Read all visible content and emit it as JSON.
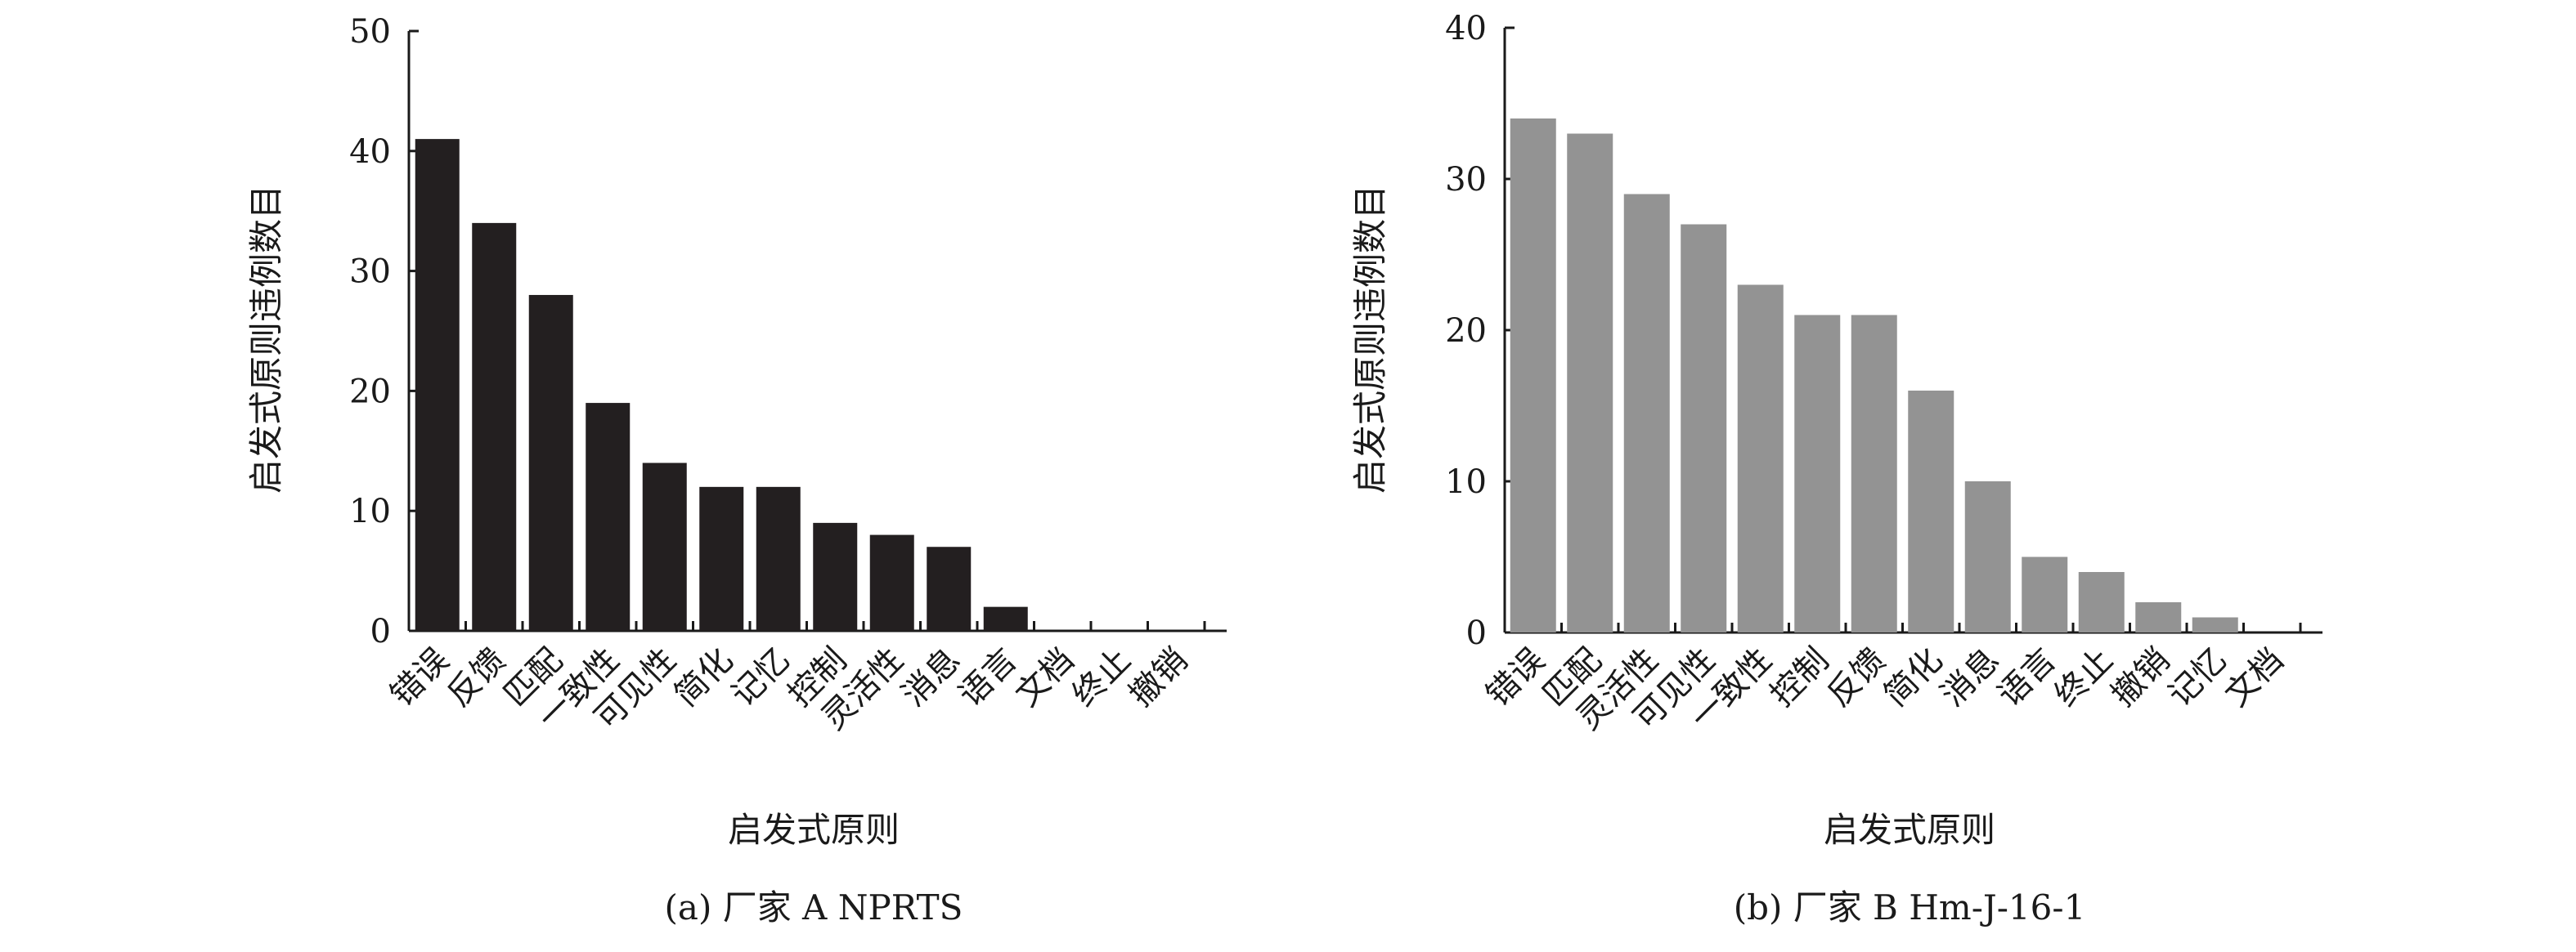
{
  "chart_data": [
    {
      "type": "bar",
      "caption": "(a) 厂家 A NPRTS",
      "xlabel": "启发式原则",
      "ylabel": "启发式原则违例数目",
      "ylim": [
        0,
        50
      ],
      "yticks": [
        0,
        10,
        20,
        30,
        40,
        50
      ],
      "color": "#231f20",
      "categories": [
        "错误",
        "反馈",
        "匹配",
        "一致性",
        "可见性",
        "简化",
        "记忆",
        "控制",
        "灵活性",
        "消息",
        "语言",
        "文档",
        "终止",
        "撤销"
      ],
      "values": [
        41,
        34,
        28,
        19,
        14,
        12,
        12,
        9,
        8,
        7,
        2,
        0,
        0,
        0
      ]
    },
    {
      "type": "bar",
      "caption": "(b) 厂家 B Hm-J-16-1",
      "xlabel": "启发式原则",
      "ylabel": "启发式原则违例数目",
      "ylim": [
        0,
        40
      ],
      "yticks": [
        0,
        10,
        20,
        30,
        40
      ],
      "color": "#939393",
      "categories": [
        "错误",
        "匹配",
        "灵活性",
        "可见性",
        "一致性",
        "控制",
        "反馈",
        "简化",
        "消息",
        "语言",
        "终止",
        "撤销",
        "记忆",
        "文档"
      ],
      "values": [
        34,
        33,
        29,
        27,
        23,
        21,
        21,
        16,
        10,
        5,
        4,
        2,
        1,
        0
      ]
    }
  ]
}
